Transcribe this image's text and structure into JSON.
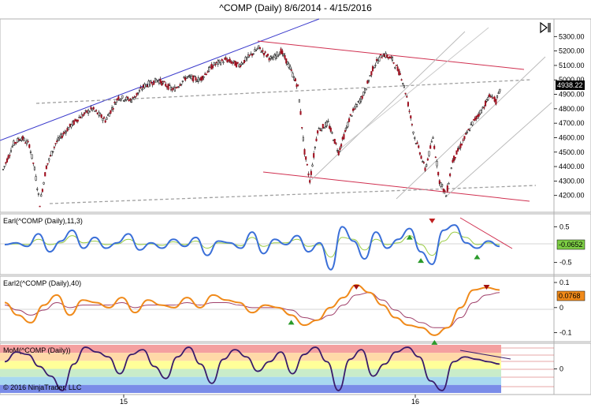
{
  "title": "^COMP (Daily)  8/6/2014 - 4/15/2016",
  "toolbar": {
    "icon": "pin-panel-icon"
  },
  "copyright": "© 2016 NinjaTrader, LLC",
  "x_ticks": [
    "15",
    "16"
  ],
  "colors": {
    "up_candle": "#ffffff",
    "down_candle": "#a01020",
    "resistance_blue": "#3a3acc",
    "channel_red": "#d03050",
    "earl_blue": "#3a6fd8",
    "earl_green": "#9acc44",
    "earl2_orange": "#f08a1a",
    "earl2_mauve": "#a0406a",
    "mom_line": "#3a1c6c"
  },
  "chart_data": [
    {
      "type": "candlestick",
      "title": "^COMP (Daily)  8/6/2014 - 4/15/2016",
      "ylim": [
        4100,
        5400
      ],
      "yticks": [
        "5300.00",
        "5200.00",
        "5100.00",
        "5000.00",
        "4900.00",
        "4800.00",
        "4700.00",
        "4600.00",
        "4500.00",
        "4400.00",
        "4300.00",
        "4200.00"
      ],
      "last_price": "4938.22",
      "price_path": [
        [
          0,
          4380
        ],
        [
          8,
          4560
        ],
        [
          14,
          4600
        ],
        [
          20,
          4550
        ],
        [
          24,
          4380
        ],
        [
          28,
          4140
        ],
        [
          33,
          4400
        ],
        [
          40,
          4560
        ],
        [
          48,
          4650
        ],
        [
          58,
          4740
        ],
        [
          68,
          4800
        ],
        [
          78,
          4720
        ],
        [
          88,
          4880
        ],
        [
          98,
          4860
        ],
        [
          108,
          4960
        ],
        [
          118,
          5000
        ],
        [
          130,
          4930
        ],
        [
          140,
          5020
        ],
        [
          150,
          5000
        ],
        [
          160,
          5100
        ],
        [
          170,
          5140
        ],
        [
          180,
          5100
        ],
        [
          190,
          5180
        ],
        [
          195,
          5220
        ],
        [
          205,
          5140
        ],
        [
          212,
          5200
        ],
        [
          218,
          5100
        ],
        [
          225,
          4950
        ],
        [
          230,
          4500
        ],
        [
          234,
          4300
        ],
        [
          240,
          4650
        ],
        [
          248,
          4700
        ],
        [
          256,
          4500
        ],
        [
          265,
          4750
        ],
        [
          275,
          4900
        ],
        [
          283,
          5100
        ],
        [
          290,
          5180
        ],
        [
          297,
          5140
        ],
        [
          304,
          5020
        ],
        [
          308,
          4880
        ],
        [
          314,
          4600
        ],
        [
          318,
          4500
        ],
        [
          322,
          4380
        ],
        [
          328,
          4600
        ],
        [
          333,
          4300
        ],
        [
          338,
          4200
        ],
        [
          343,
          4440
        ],
        [
          350,
          4560
        ],
        [
          358,
          4700
        ],
        [
          365,
          4790
        ],
        [
          372,
          4900
        ],
        [
          376,
          4850
        ],
        [
          380,
          4940
        ]
      ]
    },
    {
      "type": "line",
      "title": "Earl(^COMP (Daily),11,3)",
      "ylim": [
        -0.75,
        0.75
      ],
      "yticks": [
        "0.5",
        "-0.5"
      ],
      "last_value": "-0.0652",
      "series": [
        {
          "color": "#3a6fd8",
          "values": [
            0,
            0.05,
            -0.05,
            0.3,
            -0.2,
            0.1,
            0.4,
            -0.1,
            0.2,
            -0.1,
            0.05,
            0.3,
            -0.15,
            0.05,
            -0.1,
            0.15,
            -0.05,
            0.2,
            -0.3,
            0.1,
            0.05,
            -0.1,
            0.35,
            -0.25,
            0.15,
            0,
            0.25,
            -0.2,
            0.05,
            -0.7,
            0.5,
            0.1,
            -0.4,
            0.35,
            -0.1,
            0.15,
            0.45,
            -0.2,
            -0.55,
            0.4,
            0.55,
            0.05,
            -0.1,
            0.1,
            -0.05
          ]
        },
        {
          "color": "#9acc44",
          "values": [
            0,
            0.02,
            0,
            0.15,
            0,
            0.05,
            0.25,
            0.05,
            0.1,
            0,
            0.02,
            0.15,
            0,
            0.02,
            -0.02,
            0.08,
            0,
            0.1,
            -0.1,
            0.05,
            0.03,
            -0.03,
            0.2,
            -0.05,
            0.05,
            0.05,
            0.15,
            -0.05,
            0,
            -0.35,
            0.2,
            0.15,
            -0.15,
            0.15,
            0,
            0.05,
            0.25,
            0,
            -0.3,
            0.1,
            0.35,
            0.2,
            0,
            0.05,
            0
          ]
        }
      ],
      "signals": [
        {
          "kind": "sell",
          "index": 38
        },
        {
          "kind": "buy",
          "index": 36
        },
        {
          "kind": "buy",
          "index": 37
        },
        {
          "kind": "buy",
          "index": 42
        }
      ]
    },
    {
      "type": "line",
      "title": "Earl2(^COMP (Daily),40)",
      "ylim": [
        -0.12,
        0.1
      ],
      "yticks": [
        "0.1",
        "0",
        "-0.1"
      ],
      "last_value": "0.0768",
      "series": [
        {
          "color": "#f08a1a",
          "values": [
            0.02,
            -0.03,
            -0.06,
            0.01,
            0.05,
            -0.03,
            0.03,
            0.02,
            0,
            0.04,
            -0.02,
            0.03,
            0.01,
            0,
            0.04,
            0,
            0.05,
            0.03,
            0.02,
            -0.02,
            0.01,
            0,
            -0.03,
            -0.07,
            -0.05,
            0,
            0.04,
            0.09,
            0.06,
            0.01,
            -0.04,
            -0.07,
            -0.08,
            -0.11,
            -0.08,
            0.0,
            0.07,
            0.08,
            0.07
          ]
        },
        {
          "color": "#a0406a",
          "values": [
            0.01,
            -0.01,
            -0.03,
            -0.01,
            0.02,
            0,
            0.01,
            0.01,
            0.01,
            0.02,
            0,
            0.01,
            0.01,
            0.01,
            0.02,
            0.01,
            0.02,
            0.02,
            0.01,
            0,
            0,
            0,
            -0.01,
            -0.04,
            -0.05,
            -0.03,
            0.01,
            0.05,
            0.06,
            0.03,
            -0.01,
            -0.04,
            -0.06,
            -0.08,
            -0.08,
            -0.04,
            0.02,
            0.05,
            0.06
          ]
        }
      ]
    },
    {
      "type": "line",
      "title": "MoM(^COMP (Daily))",
      "ylim": [
        -1,
        1
      ],
      "yticks": [
        "0"
      ],
      "zones": [
        "#f4a0a0",
        "#ffd9a8",
        "#ffff99",
        "#c9ecc9",
        "#a8d8f0",
        "#7a8ce8"
      ],
      "series": [
        {
          "color": "#3a1c6c",
          "values": [
            0.3,
            0.7,
            0.6,
            0.1,
            -0.3,
            -0.9,
            0.2,
            0.9,
            0.7,
            0.5,
            -0.2,
            0.6,
            0.8,
            0.1,
            -0.4,
            0.5,
            0.9,
            0.2,
            -0.6,
            0.4,
            0.8,
            0.5,
            -0.1,
            0.3,
            0.7,
            -0.2,
            0.6,
            0.9,
            0.3,
            -0.9,
            0.4,
            0.8,
            -0.3,
            0.2,
            0.7,
            0.9,
            0.5,
            -0.5,
            -0.9,
            0.3,
            0.5,
            0.4,
            0.3,
            0.2
          ]
        }
      ]
    }
  ]
}
